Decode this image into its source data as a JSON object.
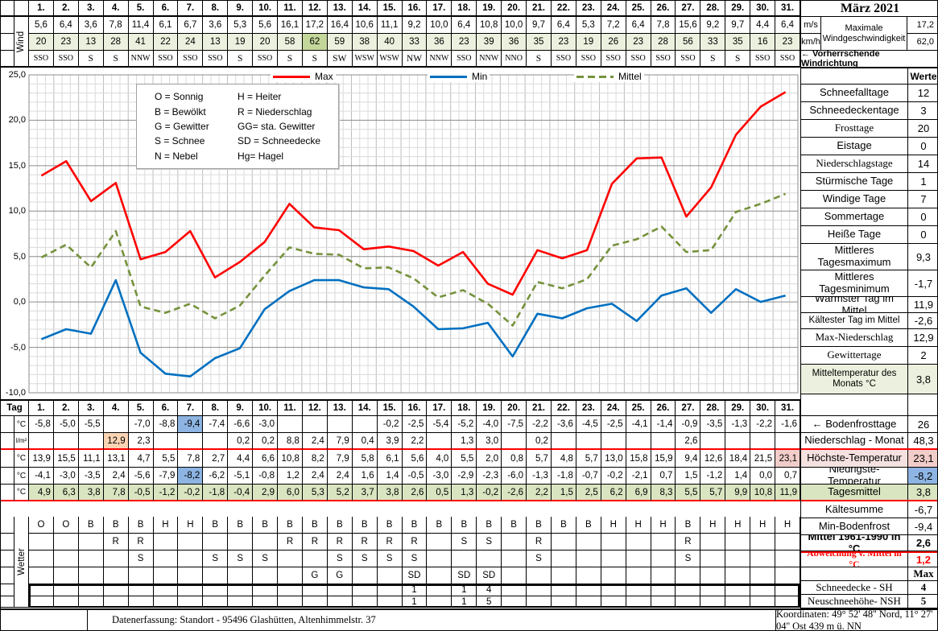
{
  "month_title": "März 2021",
  "days": [
    "1.",
    "2.",
    "3.",
    "4.",
    "5.",
    "6.",
    "7.",
    "8.",
    "9.",
    "10.",
    "11.",
    "12.",
    "13.",
    "14.",
    "15.",
    "16.",
    "17.",
    "18.",
    "19.",
    "20.",
    "21.",
    "22.",
    "23.",
    "24.",
    "25.",
    "26.",
    "27.",
    "28.",
    "29.",
    "30.",
    "31."
  ],
  "wind": {
    "row_label": "Wind",
    "ms": [
      "5,6",
      "6,4",
      "3,6",
      "7,8",
      "11,4",
      "6,1",
      "6,7",
      "3,6",
      "5,3",
      "5,6",
      "16,1",
      "17,2",
      "16,4",
      "10,6",
      "11,1",
      "9,2",
      "10,0",
      "6,4",
      "10,8",
      "10,0",
      "9,7",
      "6,4",
      "5,3",
      "7,2",
      "6,4",
      "7,8",
      "15,6",
      "9,2",
      "9,7",
      "4,4",
      "6,4"
    ],
    "kmh": [
      "20",
      "23",
      "13",
      "28",
      "41",
      "22",
      "24",
      "13",
      "19",
      "20",
      "58",
      "62",
      "59",
      "38",
      "40",
      "33",
      "36",
      "23",
      "39",
      "36",
      "35",
      "23",
      "19",
      "26",
      "23",
      "28",
      "56",
      "33",
      "35",
      "16",
      "23"
    ],
    "dir": [
      "SSO",
      "SSO",
      "S",
      "S",
      "NNW",
      "SSO",
      "SSO",
      "SSO",
      "S",
      "SSO",
      "S",
      "S",
      "SW",
      "WSW",
      "WSW",
      "NW",
      "NNW",
      "SSO",
      "NNW",
      "NNO",
      "S",
      "SSO",
      "SSO",
      "SSO",
      "SSO",
      "SSO",
      "SSO",
      "S",
      "S",
      "SSO",
      "SSO"
    ],
    "kmh_highlight_index": 11,
    "unit_ms": "m/s",
    "unit_kmh": "km/h",
    "max_label": "Maximale Windgeschwindigkeit",
    "max_ms": "17,2",
    "max_kmh": "62,0",
    "prevailing_label": "←  Vorherrschende Windrichtung"
  },
  "chart_data": {
    "type": "line",
    "x": [
      1,
      2,
      3,
      4,
      5,
      6,
      7,
      8,
      9,
      10,
      11,
      12,
      13,
      14,
      15,
      16,
      17,
      18,
      19,
      20,
      21,
      22,
      23,
      24,
      25,
      26,
      27,
      28,
      29,
      30,
      31
    ],
    "series": [
      {
        "name": "Max",
        "color": "#ff0000",
        "dash": false,
        "values": [
          13.9,
          15.5,
          11.1,
          13.1,
          4.7,
          5.5,
          7.8,
          2.7,
          4.4,
          6.6,
          10.8,
          8.2,
          7.9,
          5.8,
          6.1,
          5.6,
          4.0,
          5.5,
          2.0,
          0.8,
          5.7,
          4.8,
          5.7,
          13.0,
          15.8,
          15.9,
          9.4,
          12.6,
          18.4,
          21.5,
          23.1
        ]
      },
      {
        "name": "Min",
        "color": "#0070c0",
        "dash": false,
        "values": [
          -4.1,
          -3.0,
          -3.5,
          2.4,
          -5.6,
          -7.9,
          -8.2,
          -6.2,
          -5.1,
          -0.8,
          1.2,
          2.4,
          2.4,
          1.6,
          1.4,
          -0.5,
          -3.0,
          -2.9,
          -2.3,
          -6.0,
          -1.3,
          -1.8,
          -0.7,
          -0.2,
          -2.1,
          0.7,
          1.5,
          -1.2,
          1.4,
          0.0,
          0.7
        ]
      },
      {
        "name": "Mittel",
        "color": "#76923c",
        "dash": true,
        "values": [
          4.9,
          6.3,
          3.8,
          7.8,
          -0.5,
          -1.2,
          -0.2,
          -1.8,
          -0.4,
          2.9,
          6.0,
          5.3,
          5.2,
          3.7,
          3.8,
          2.6,
          0.5,
          1.3,
          -0.2,
          -2.6,
          2.2,
          1.5,
          2.5,
          6.2,
          6.9,
          8.3,
          5.5,
          5.7,
          9.9,
          10.8,
          11.9
        ]
      }
    ],
    "ylim": [
      -10,
      25
    ],
    "yticks": [
      "25,0",
      "20,0",
      "15,0",
      "10,0",
      "5,0",
      "0,0",
      "-5,0",
      "-10,0"
    ],
    "grid": true,
    "legend_position": "top"
  },
  "weather_legend": [
    "O = Sonnig",
    "H = Heiter",
    "B = Bewölkt",
    "R = Niederschlag",
    "G = Gewitter",
    "GG= sta. Gewitter",
    "S = Schnee",
    "SD = Schneedecke",
    "N = Nebel",
    "Hg= Hagel"
  ],
  "sidebar": {
    "values_header": "Werte",
    "rows": [
      {
        "label": "Schneefalltage",
        "value": "12"
      },
      {
        "label": "Schneedeckentage",
        "value": "3"
      },
      {
        "label": "Frosttage",
        "value": "20",
        "serif_label": true
      },
      {
        "label": "Eistage",
        "value": "0"
      },
      {
        "label": "Niederschlagstage",
        "value": "14",
        "serif_label": true
      },
      {
        "label": "Stürmische Tage",
        "value": "1"
      },
      {
        "label": "Windige Tage",
        "value": "7"
      },
      {
        "label": "Sommertage",
        "value": "0"
      },
      {
        "label": "Heiße Tage",
        "value": "0"
      },
      {
        "label": "Mittleres Tagesmaximum",
        "value": "9,3"
      },
      {
        "label": "Mittleres Tagesminimum",
        "value": "-1,7"
      },
      {
        "label": "Wärmster Tag im Mittel",
        "value": "11,9"
      },
      {
        "label": "Kältester Tag im Mittel",
        "value": "-2,6"
      },
      {
        "label": "Max-Niederschlag",
        "value": "12,9",
        "serif_label": true
      },
      {
        "label": "Gewittertage",
        "value": "2",
        "serif_label": true
      },
      {
        "label": "Mitteltemperatur des Monats °C",
        "value": "3,8",
        "green": true
      },
      {
        "label": "",
        "value": "",
        "spacer": true
      },
      {
        "label": "← Bodenfrosttage",
        "value": "26"
      },
      {
        "label": "Niederschlag - Monat",
        "value": "48,3",
        "red_line_below": true
      },
      {
        "label": "Höchste-Temperatur",
        "value": "23,1",
        "pink": true
      },
      {
        "label": "Niedrigste-Temperatur",
        "value": "-8,2",
        "value_blue": true
      },
      {
        "label": "Tagesmittel",
        "value": "3,8",
        "green_dark": true,
        "red_line_below": true
      },
      {
        "label": "Kältesumme",
        "value": "-6,7"
      },
      {
        "label": "Min-Bodenfrost",
        "value": "-9,4"
      },
      {
        "label": "Mittel 1961-1990 in °C",
        "value": "2,6",
        "bold": true
      },
      {
        "label": "Abweichung v. Mittel in °C",
        "value": "1,2",
        "red_text": true,
        "bold": true,
        "serif_label": true,
        "red_line_above": true
      },
      {
        "label": "",
        "value": "Max",
        "bold_value": true,
        "serif_label": true
      },
      {
        "label": "Schneedecke -   SH",
        "value": "4",
        "serif_label": true,
        "bold_value": true
      },
      {
        "label": "Neuschneehöhe- NSH",
        "value": "5",
        "serif_label": true,
        "bold_value": true
      }
    ]
  },
  "bottom": {
    "tag_label": "Tag",
    "wetter_label": "Wetter",
    "rows": [
      {
        "unit": "°C",
        "name": "bodenfrost-temp",
        "values": [
          "-5,8",
          "-5,0",
          "-5,5",
          "",
          "-7,0",
          "-8,8",
          "-9,4",
          "-7,4",
          "-6,6",
          "-3,0",
          "",
          "",
          "",
          "",
          "-0,2",
          "-2,5",
          "-5,4",
          "-5,2",
          "-4,0",
          "-7,5",
          "-2,2",
          "-3,6",
          "-4,5",
          "-2,5",
          "-4,1",
          "-1,4",
          "-0,9",
          "-3,5",
          "-1,3",
          "-2,2",
          "-1,6"
        ],
        "hl": {
          "6": "blue"
        }
      },
      {
        "unit": "l/m²",
        "name": "niederschlag",
        "values": [
          "",
          "",
          "",
          "12,9",
          "2,3",
          "",
          "",
          "",
          "0,2",
          "0,2",
          "8,8",
          "2,4",
          "7,9",
          "0,4",
          "3,9",
          "2,2",
          "",
          "1,3",
          "3,0",
          "",
          "0,2",
          "",
          "",
          "",
          "",
          "",
          "2,6",
          "",
          "",
          "",
          ""
        ],
        "hl": {
          "3": "orange"
        },
        "red_line_below": true
      },
      {
        "unit": "°C",
        "name": "hoechste-temp",
        "values": [
          "13,9",
          "15,5",
          "11,1",
          "13,1",
          "4,7",
          "5,5",
          "7,8",
          "2,7",
          "4,4",
          "6,6",
          "10,8",
          "8,2",
          "7,9",
          "5,8",
          "6,1",
          "5,6",
          "4,0",
          "5,5",
          "2,0",
          "0,8",
          "5,7",
          "4,8",
          "5,7",
          "13,0",
          "15,8",
          "15,9",
          "9,4",
          "12,6",
          "18,4",
          "21,5",
          "23,1"
        ],
        "hl": {
          "30": "pink"
        }
      },
      {
        "unit": "°C",
        "name": "niedrigste-temp",
        "values": [
          "-4,1",
          "-3,0",
          "-3,5",
          "2,4",
          "-5,6",
          "-7,9",
          "-8,2",
          "-6,2",
          "-5,1",
          "-0,8",
          "1,2",
          "2,4",
          "2,4",
          "1,6",
          "1,4",
          "-0,5",
          "-3,0",
          "-2,9",
          "-2,3",
          "-6,0",
          "-1,3",
          "-1,8",
          "-0,7",
          "-0,2",
          "-2,1",
          "0,7",
          "1,5",
          "-1,2",
          "1,4",
          "0,0",
          "0,7"
        ],
        "hl": {
          "6": "blue"
        }
      },
      {
        "unit": "°C",
        "name": "tagesmittel",
        "values": [
          "4,9",
          "6,3",
          "3,8",
          "7,8",
          "-0,5",
          "-1,2",
          "-0,2",
          "-1,8",
          "-0,4",
          "2,9",
          "6,0",
          "5,3",
          "5,2",
          "3,7",
          "3,8",
          "2,6",
          "0,5",
          "1,3",
          "-0,2",
          "-2,6",
          "2,2",
          "1,5",
          "2,5",
          "6,2",
          "6,9",
          "8,3",
          "5,5",
          "5,7",
          "9,9",
          "10,8",
          "11,9"
        ],
        "green": true,
        "red_line_below": true
      }
    ],
    "weather_rows": [
      [
        "O",
        "O",
        "B",
        "B",
        "B",
        "H",
        "H",
        "B",
        "B",
        "B",
        "B",
        "B",
        "B",
        "B",
        "B",
        "B",
        "B",
        "B",
        "B",
        "B",
        "B",
        "B",
        "B",
        "H",
        "H",
        "H",
        "B",
        "H",
        "H",
        "H",
        "H"
      ],
      [
        "",
        "",
        "",
        "R",
        "R",
        "",
        "",
        "",
        "",
        "",
        "R",
        "R",
        "R",
        "R",
        "R",
        "R",
        "",
        "S",
        "S",
        "",
        "R",
        "",
        "",
        "",
        "",
        "",
        "R",
        "",
        "",
        "",
        ""
      ],
      [
        "",
        "",
        "",
        "",
        "S",
        "",
        "",
        "S",
        "S",
        "S",
        "",
        "",
        "S",
        "S",
        "S",
        "S",
        "",
        "",
        "",
        "",
        "S",
        "",
        "",
        "",
        "",
        "",
        "S",
        "",
        "",
        "",
        ""
      ],
      [
        "",
        "",
        "",
        "",
        "",
        "",
        "",
        "",
        "",
        "",
        "",
        "G",
        "G",
        "",
        "",
        "SD",
        "",
        "SD",
        "SD",
        "",
        "",
        "",
        "",
        "",
        "",
        "",
        "",
        "",
        "",
        "",
        ""
      ],
      [
        "",
        "",
        "",
        "",
        "",
        "",
        "",
        "",
        "",
        "",
        "",
        "",
        "",
        "",
        "",
        "1",
        "",
        "1",
        "4",
        "",
        "",
        "",
        "",
        "",
        "",
        "",
        "",
        "",
        "",
        "",
        ""
      ],
      [
        "",
        "",
        "",
        "",
        "",
        "",
        "",
        "",
        "",
        "",
        "",
        "",
        "",
        "",
        "",
        "1",
        "",
        "1",
        "5",
        "",
        "",
        "",
        "",
        "",
        "",
        "",
        "",
        "",
        "",
        "",
        ""
      ]
    ]
  },
  "footer": {
    "left": "Datenerfassung:  Standort -  95496  Glashütten, Altenhimmelstr. 37",
    "right": "Koordinaten:  49° 52' 48'' Nord,   11° 27' 04'' Ost    439 m ü. NN"
  }
}
